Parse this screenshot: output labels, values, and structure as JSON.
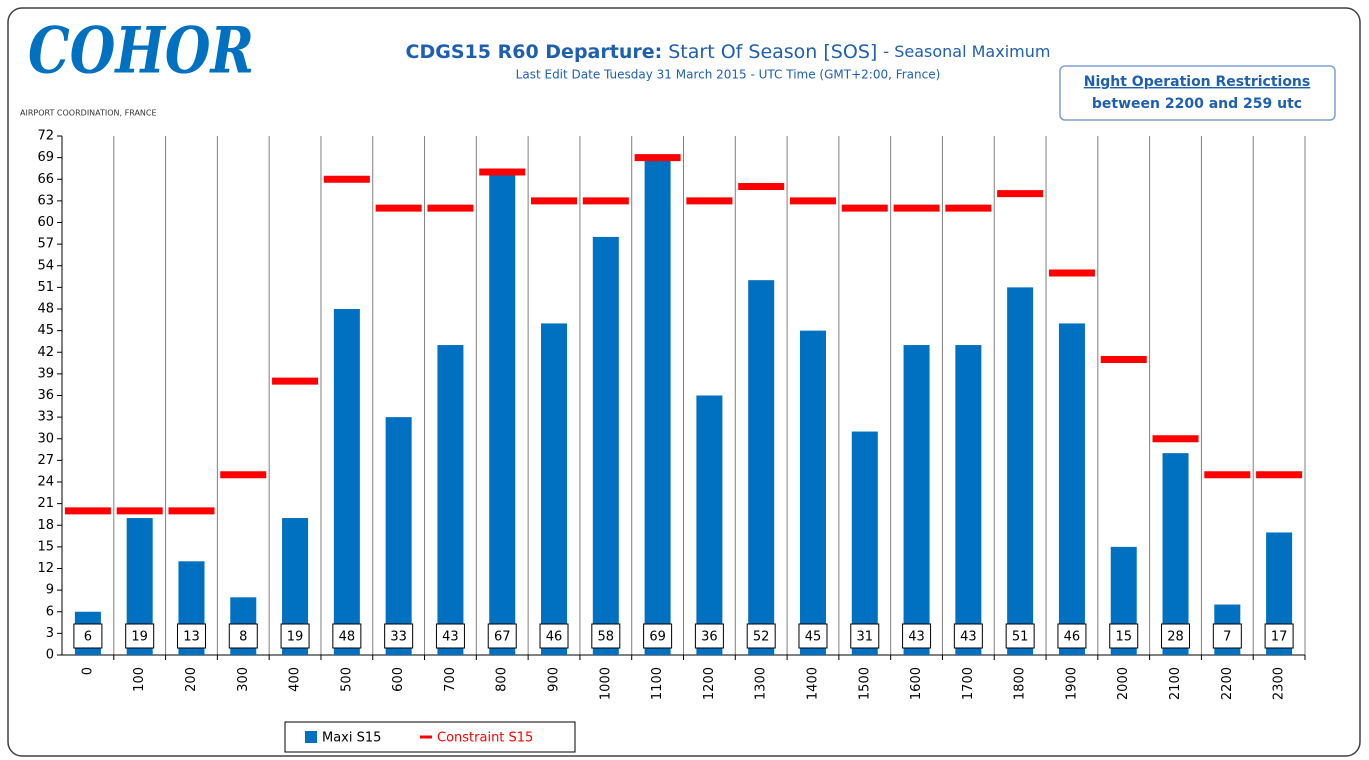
{
  "chart_data": {
    "type": "bar",
    "logo": "COHOR",
    "logo_subtitle": "AIRPORT COORDINATION, FRANCE",
    "title": {
      "bold": "CDGS15 R60 Departure:",
      "main": "Start Of Season [SOS]",
      "suffix": "-  Seasonal Maximum"
    },
    "subtitle": "Last Edit Date Tuesday 31 March 2015 - UTC Time (GMT+2:00, France)",
    "note": {
      "title": "Night Operation Restrictions",
      "text": "between 2200 and 259 utc"
    },
    "categories": [
      "0",
      "100",
      "200",
      "300",
      "400",
      "500",
      "600",
      "700",
      "800",
      "900",
      "1000",
      "1100",
      "1200",
      "1300",
      "1400",
      "1500",
      "1600",
      "1700",
      "1800",
      "1900",
      "2000",
      "2100",
      "2200",
      "2300"
    ],
    "series": [
      {
        "name": "Maxi S15",
        "color": "#0070c0",
        "style": "bar",
        "values": [
          6,
          19,
          13,
          8,
          19,
          48,
          33,
          43,
          67,
          46,
          58,
          69,
          36,
          52,
          45,
          31,
          43,
          43,
          51,
          46,
          15,
          28,
          7,
          17
        ]
      },
      {
        "name": "Constraint S15",
        "color": "#ff0000",
        "style": "dash",
        "values": [
          20,
          20,
          20,
          25,
          38,
          66,
          62,
          62,
          67,
          63,
          63,
          69,
          63,
          65,
          63,
          62,
          62,
          62,
          64,
          53,
          41,
          30,
          25,
          25
        ]
      }
    ],
    "ylim": [
      0,
      72
    ],
    "yticks": [
      0,
      3,
      6,
      9,
      12,
      15,
      18,
      21,
      24,
      27,
      30,
      33,
      36,
      39,
      42,
      45,
      48,
      51,
      54,
      57,
      60,
      63,
      66,
      69,
      72
    ],
    "grid": true,
    "legend": "bottom"
  }
}
